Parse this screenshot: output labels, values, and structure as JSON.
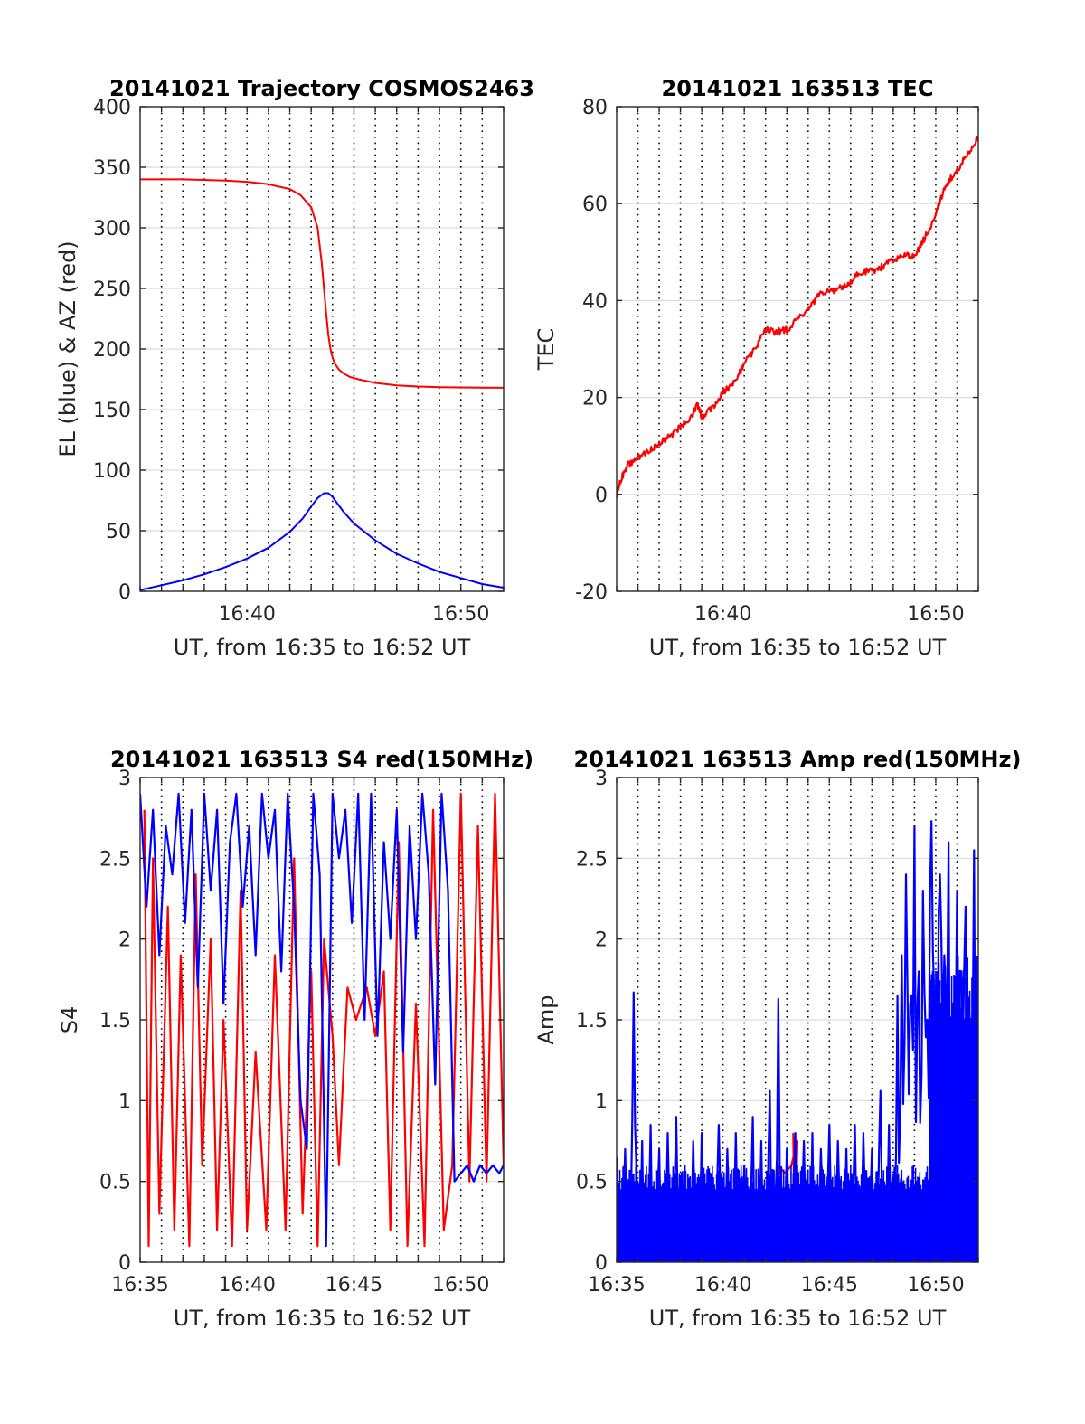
{
  "chart_data": [
    {
      "id": "trajectory",
      "type": "line",
      "title": "20141021 Trajectory COSMOS2463",
      "xlabel": "UT, from 16:35 to 16:52 UT",
      "ylabel": "EL (blue) & AZ (red)",
      "xlim": [
        0,
        17
      ],
      "ylim": [
        0,
        400
      ],
      "yticks": [
        0,
        50,
        100,
        150,
        200,
        250,
        300,
        350,
        400
      ],
      "ytick_labels": [
        "0",
        "50",
        "100",
        "150",
        "200",
        "250",
        "300",
        "350",
        "400"
      ],
      "xticks": [
        5,
        15
      ],
      "xtick_labels": [
        "16:40",
        "16:50"
      ],
      "grid": "x dotted each minute, y solid",
      "series": [
        {
          "color": "#ff0000",
          "x": [
            0,
            2,
            4,
            5,
            6,
            7,
            7.5,
            8,
            8.3,
            8.5,
            8.7,
            8.8,
            8.9,
            9.0,
            9.1,
            9.3,
            9.5,
            9.8,
            10.2,
            11,
            12,
            13,
            14,
            15,
            16,
            17
          ],
          "y": [
            340,
            340,
            339,
            338,
            336,
            332,
            327,
            317,
            300,
            270,
            230,
            212,
            200,
            193,
            188,
            183,
            180,
            177,
            175,
            172,
            170,
            169,
            168.5,
            168.3,
            168.1,
            168
          ]
        },
        {
          "color": "#0000ff",
          "x": [
            0,
            1,
            2,
            3,
            4,
            5,
            6,
            7,
            7.6,
            8.0,
            8.3,
            8.6,
            8.8,
            9.0,
            9.2,
            9.5,
            10,
            11,
            12,
            13,
            14,
            15,
            16,
            17
          ],
          "y": [
            1,
            5,
            9,
            14,
            20,
            27,
            36,
            49,
            60,
            70,
            77,
            81,
            81,
            78,
            73,
            66,
            56,
            42,
            31,
            23,
            16,
            11,
            6,
            3
          ]
        }
      ]
    },
    {
      "id": "tec",
      "type": "line",
      "title": "20141021 163513 TEC",
      "xlabel": "UT, from 16:35 to 16:52 UT",
      "ylabel": "TEC",
      "xlim": [
        0,
        17
      ],
      "ylim": [
        -20,
        80
      ],
      "yticks": [
        -20,
        0,
        20,
        40,
        60,
        80
      ],
      "ytick_labels": [
        "-20",
        "0",
        "20",
        "40",
        "60",
        "80"
      ],
      "xticks": [
        5,
        15
      ],
      "xtick_labels": [
        "16:40",
        "16:50"
      ],
      "grid": "x dotted each minute, y solid",
      "series": [
        {
          "color": "#ff0000",
          "x": [
            0,
            0.2,
            0.5,
            1,
            1.5,
            2,
            2.5,
            3,
            3.5,
            3.8,
            4,
            4.5,
            5,
            5.5,
            6,
            6.5,
            7,
            7.5,
            8,
            8.5,
            9,
            9.5,
            10,
            10.5,
            11,
            11.5,
            12,
            12.5,
            13,
            13.5,
            14,
            14.5,
            15,
            15.5,
            16,
            16.5,
            17
          ],
          "y": [
            0,
            3,
            6,
            7.5,
            9,
            10.5,
            12,
            14,
            16,
            18.5,
            16,
            18,
            21,
            23,
            27,
            30,
            34,
            33.5,
            34,
            36,
            38,
            41,
            42,
            42.5,
            44,
            46,
            46,
            47,
            48.5,
            49.5,
            49,
            53,
            58,
            64,
            67,
            70,
            74
          ]
        }
      ]
    },
    {
      "id": "s4",
      "type": "line",
      "title": "20141021 163513 S4 red(150MHz)",
      "xlabel": "UT, from 16:35 to 16:52 UT",
      "ylabel": "S4",
      "xlim": [
        0,
        17
      ],
      "ylim": [
        0,
        3
      ],
      "yticks": [
        0,
        0.5,
        1,
        1.5,
        2,
        2.5,
        3
      ],
      "ytick_labels": [
        "0",
        "0.5",
        "1",
        "1.5",
        "2",
        "2.5",
        "3"
      ],
      "xticks": [
        0,
        5,
        10,
        15
      ],
      "xtick_labels": [
        "16:35",
        "16:40",
        "16:45",
        "16:50"
      ],
      "grid": "x dotted each minute, y solid",
      "series": [
        {
          "color": "#ff0000",
          "x": [
            0.2,
            0.4,
            0.6,
            0.9,
            1.3,
            1.6,
            1.9,
            2.3,
            2.6,
            2.9,
            3.3,
            3.6,
            3.9,
            4.3,
            4.7,
            5.0,
            5.4,
            5.9,
            6.3,
            6.8,
            7.2,
            7.6,
            8.0,
            8.3,
            8.6,
            9.0,
            9.3,
            9.7,
            10.1,
            10.6,
            11.0,
            11.4,
            11.7,
            12.1,
            12.5,
            12.9,
            13.3,
            13.7,
            14.2,
            14.6,
            15.0,
            15.4,
            15.8,
            16.2,
            16.6,
            17.0
          ],
          "y": [
            2.8,
            0.1,
            2.5,
            0.3,
            2.2,
            0.2,
            1.9,
            0.1,
            2.4,
            0.6,
            2.0,
            0.2,
            1.5,
            0.1,
            2.3,
            0.2,
            1.3,
            0.2,
            1.9,
            0.2,
            2.5,
            0.3,
            1.8,
            0.1,
            2.0,
            1.4,
            0.6,
            1.7,
            1.5,
            1.7,
            1.4,
            1.8,
            0.2,
            2.6,
            0.1,
            1.6,
            0.1,
            2.8,
            0.2,
            0.6,
            2.9,
            0.5,
            2.7,
            0.5,
            2.9,
            0.6
          ]
        },
        {
          "color": "#0000ff",
          "x": [
            0,
            0.3,
            0.6,
            0.9,
            1.2,
            1.5,
            1.8,
            2.1,
            2.4,
            2.7,
            3.0,
            3.3,
            3.6,
            3.9,
            4.2,
            4.5,
            4.8,
            5.1,
            5.4,
            5.7,
            6.0,
            6.3,
            6.6,
            6.9,
            7.2,
            7.5,
            7.8,
            8.1,
            8.4,
            8.7,
            9.0,
            9.3,
            9.6,
            9.9,
            10.2,
            10.5,
            10.8,
            11.1,
            11.4,
            11.7,
            12.0,
            12.3,
            12.6,
            12.9,
            13.2,
            13.5,
            13.8,
            14.1,
            14.4,
            14.7,
            15.0,
            15.3,
            15.6,
            15.9,
            16.2,
            16.5,
            16.8,
            17.0
          ],
          "y": [
            2.9,
            2.2,
            2.8,
            1.9,
            2.7,
            2.4,
            2.9,
            2.1,
            2.8,
            1.7,
            2.9,
            2.3,
            2.8,
            1.6,
            2.6,
            2.9,
            2.2,
            2.7,
            1.9,
            2.9,
            2.5,
            2.8,
            1.8,
            2.9,
            2.2,
            1.0,
            0.7,
            2.9,
            2.4,
            0.1,
            2.9,
            2.5,
            2.8,
            2.1,
            2.9,
            1.5,
            2.9,
            1.4,
            2.6,
            2.0,
            2.8,
            1.3,
            2.7,
            2.0,
            2.9,
            2.4,
            1.1,
            2.9,
            2.3,
            0.5,
            0.55,
            0.6,
            0.5,
            0.6,
            0.55,
            0.6,
            0.55,
            0.6
          ]
        }
      ]
    },
    {
      "id": "amp",
      "type": "line",
      "title": "20141021 163513 Amp red(150MHz)",
      "xlabel": "UT, from 16:35 to 16:52 UT",
      "ylabel": "Amp",
      "xlim": [
        0,
        17
      ],
      "ylim": [
        0,
        3
      ],
      "yticks": [
        0,
        0.5,
        1,
        1.5,
        2,
        2.5,
        3
      ],
      "ytick_labels": [
        "0",
        "0.5",
        "1",
        "1.5",
        "2",
        "2.5",
        "3"
      ],
      "xticks": [
        0,
        5,
        10,
        15
      ],
      "xtick_labels": [
        "16:35",
        "16:40",
        "16:45",
        "16:50"
      ],
      "grid": "x dotted each minute, y solid",
      "series": [
        {
          "color": "#ff0000",
          "x": [
            8.3,
            8.4,
            8.5,
            7.6,
            7.7
          ],
          "y": [
            0.8,
            0.2,
            0.75,
            0.6,
            0.15
          ]
        },
        {
          "color": "#0000ff",
          "x": [
            0,
            0.2,
            0.4,
            0.6,
            0.8,
            1.0,
            1.2,
            1.4,
            1.6,
            1.8,
            2.0,
            2.2,
            2.4,
            2.6,
            2.8,
            3.0,
            3.2,
            3.4,
            3.6,
            3.8,
            4.0,
            4.2,
            4.4,
            4.6,
            4.8,
            5.0,
            5.2,
            5.4,
            5.6,
            5.8,
            6.0,
            6.2,
            6.4,
            6.6,
            6.8,
            7.0,
            7.2,
            7.4,
            7.6,
            7.8,
            8.0,
            8.2,
            8.4,
            8.6,
            8.8,
            9.0,
            9.2,
            9.4,
            9.6,
            9.8,
            10.0,
            10.2,
            10.4,
            10.6,
            10.8,
            11.0,
            11.2,
            11.4,
            11.6,
            11.8,
            12.0,
            12.2,
            12.4,
            12.6,
            12.8,
            13.0,
            13.2,
            13.4,
            13.6,
            13.8,
            14.0,
            14.2,
            14.4,
            14.6,
            14.8,
            15.0,
            15.2,
            15.4,
            15.6,
            15.8,
            16.0,
            16.2,
            16.4,
            16.6,
            16.8,
            17.0
          ],
          "y": [
            0.65,
            0.02,
            0.7,
            0.05,
            1.67,
            0.03,
            0.75,
            0.02,
            0.85,
            0.04,
            0.7,
            0.02,
            0.8,
            0.03,
            0.9,
            0.02,
            0.6,
            0.03,
            0.75,
            0.02,
            0.8,
            0.03,
            0.55,
            0.02,
            0.85,
            0.03,
            0.7,
            0.02,
            0.8,
            0.03,
            0.6,
            0.02,
            0.9,
            0.03,
            0.75,
            0.02,
            1.06,
            0.05,
            1.63,
            0.02,
            0.7,
            0.03,
            0.8,
            0.02,
            0.75,
            0.03,
            0.8,
            0.02,
            0.7,
            0.03,
            0.85,
            0.02,
            0.75,
            0.03,
            0.7,
            0.02,
            0.85,
            0.03,
            0.8,
            0.02,
            0.7,
            0.03,
            1.06,
            0.02,
            0.85,
            0.04,
            1.65,
            1.9,
            2.4,
            1.6,
            2.7,
            1.8,
            2.3,
            1.5,
            2.73,
            1.7,
            2.4,
            1.9,
            2.6,
            1.6,
            2.3,
            1.8,
            2.2,
            1.5,
            2.55,
            1.8
          ]
        }
      ]
    }
  ]
}
